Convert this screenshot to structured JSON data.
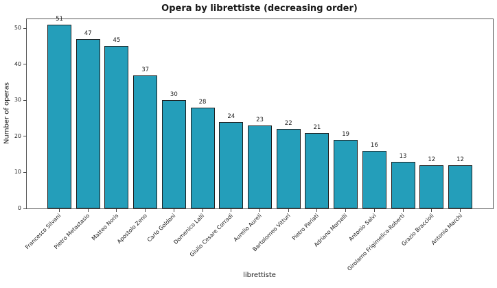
{
  "chart_data": {
    "type": "bar",
    "title": "Opera by librettiste (decreasing order)",
    "xlabel": "librettiste",
    "ylabel": "Number of operas",
    "categories": [
      "Francesco Silvani",
      "Pietro Metastasio",
      "Matteo Noris",
      "Apostolo Zeno",
      "Carlo Goldoni",
      "Domenico Lalli",
      "Giulio Cesare Corradi",
      "Aurelio Aureli",
      "Bartolomeo Vitturi",
      "Pietro Pariati",
      "Adriano Morselli",
      "Antonio Salvi",
      "Girolamo Frigimelica-Roberti",
      "Grazio Braccioli",
      "Antonio Marchi"
    ],
    "values": [
      51,
      47,
      45,
      37,
      30,
      28,
      24,
      23,
      22,
      21,
      19,
      16,
      13,
      12,
      12
    ],
    "yticks": [
      0,
      10,
      20,
      30,
      40,
      50
    ],
    "ylim": [
      0,
      52.5
    ],
    "grid": false,
    "legend": null,
    "value_labels_shown": true,
    "bar_color": "#249eba",
    "bar_edge_color": "#1f1f1f",
    "spine_color": "#555555"
  }
}
